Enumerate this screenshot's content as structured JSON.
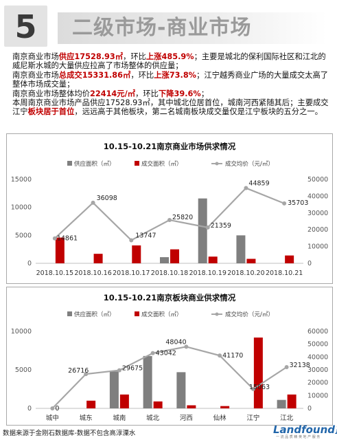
{
  "header": {
    "number": "5",
    "title": "二级市场-商业市场"
  },
  "summary": {
    "line1": [
      {
        "t": "南京商业市场"
      },
      {
        "t": "供应17528.93㎡",
        "hl": true
      },
      {
        "t": "，环比"
      },
      {
        "t": "上涨485.9%",
        "hl": true
      },
      {
        "t": "；主要是城北的保利国际社区和江北的威尼斯水城的大量供应拉高了市场整体的供应量；"
      }
    ],
    "line2": [
      {
        "t": "南京商业市场"
      },
      {
        "t": "总成交15331.86㎡",
        "hl": true
      },
      {
        "t": "，环比"
      },
      {
        "t": "上涨73.8%",
        "hl": true
      },
      {
        "t": "；江宁越秀商业广场的大量成交太高了整体市场成交量；"
      }
    ],
    "line3": [
      {
        "t": "南京商业市场整体均价"
      },
      {
        "t": "22414元/㎡",
        "hl": true
      },
      {
        "t": "，环比"
      },
      {
        "t": "下降39.6%",
        "hl": true
      },
      {
        "t": "；"
      }
    ],
    "line4": [
      {
        "t": "本周南京商业市场产品供应17528.93㎡，其中城北位居首位，城南河西紧随其后；主要成交江宁"
      },
      {
        "t": "板块居于首位",
        "hl": true
      },
      {
        "t": "，远远高于其他板块，第二名城南板块成交量仅是江宁板块的五分之一。"
      }
    ]
  },
  "chart_data": [
    {
      "type": "bar",
      "title": "10.15-10.21南京商业市场供求情况",
      "legend": [
        "供应面积（㎡）",
        "成交面积（㎡）",
        "成交均价（元/㎡）"
      ],
      "legend_position": "top",
      "categories": [
        "2018.10.15",
        "2018.10.16",
        "2018.10.17",
        "2018.10.18",
        "2018.10.19",
        "2018.10.20",
        "2018.10.21"
      ],
      "series": [
        {
          "name": "供应面积（㎡）",
          "type": "bar",
          "axis": "left",
          "color": "#7f7f7f",
          "values": [
            0,
            0,
            0,
            1100,
            11600,
            5000,
            0
          ]
        },
        {
          "name": "成交面积（㎡）",
          "type": "bar",
          "axis": "left",
          "color": "#c00000",
          "values": [
            4600,
            1700,
            3200,
            2500,
            1200,
            800,
            1400
          ]
        },
        {
          "name": "成交均价（元/㎡）",
          "type": "line",
          "axis": "right",
          "color": "#a6a6a6",
          "values": [
            14861,
            36098,
            13747,
            25820,
            21359,
            44859,
            35703
          ]
        }
      ],
      "ylim_left": [
        0,
        15000
      ],
      "yticks_left": [
        0,
        5000,
        10000,
        15000
      ],
      "ylim_right": [
        0,
        50000
      ],
      "yticks_right": [
        0,
        10000,
        20000,
        30000,
        40000,
        50000
      ],
      "grid": false
    },
    {
      "type": "bar",
      "title": "10.15-10.21南京板块商业供求情况",
      "legend": [
        "供应面积（㎡）",
        "成交面积（㎡）",
        "成交均价（元/㎡）"
      ],
      "legend_position": "top",
      "categories": [
        "城中",
        "城东",
        "城南",
        "城北",
        "河西",
        "仙林",
        "江宁",
        "江北"
      ],
      "series": [
        {
          "name": "供应面积（㎡）",
          "type": "bar",
          "axis": "left",
          "color": "#7f7f7f",
          "values": [
            0,
            0,
            4800,
            6800,
            4700,
            0,
            0,
            1100
          ]
        },
        {
          "name": "成交面积（㎡）",
          "type": "bar",
          "axis": "left",
          "color": "#c00000",
          "values": [
            0,
            1000,
            1800,
            900,
            400,
            300,
            9200,
            1800
          ]
        },
        {
          "name": "成交均价（元/㎡）",
          "type": "line",
          "axis": "right",
          "color": "#a6a6a6",
          "values": [
            0,
            26716,
            29675,
            43042,
            48040,
            41170,
            15063,
            32138
          ]
        }
      ],
      "ylim_left": [
        0,
        10000
      ],
      "yticks_left": [
        0,
        5000,
        10000
      ],
      "ylim_right": [
        0,
        60000
      ],
      "yticks_right": [
        0,
        10000,
        20000,
        30000,
        40000,
        50000,
        60000
      ],
      "grid": false
    }
  ],
  "footer": {
    "source": "数据来源于金刚石数据库-数据不包含高淳溧水",
    "logo": "Landfound",
    "logo_cn": "蓝风",
    "logo_sub": "一 流 品 质 精 英 地 产 服 务"
  }
}
